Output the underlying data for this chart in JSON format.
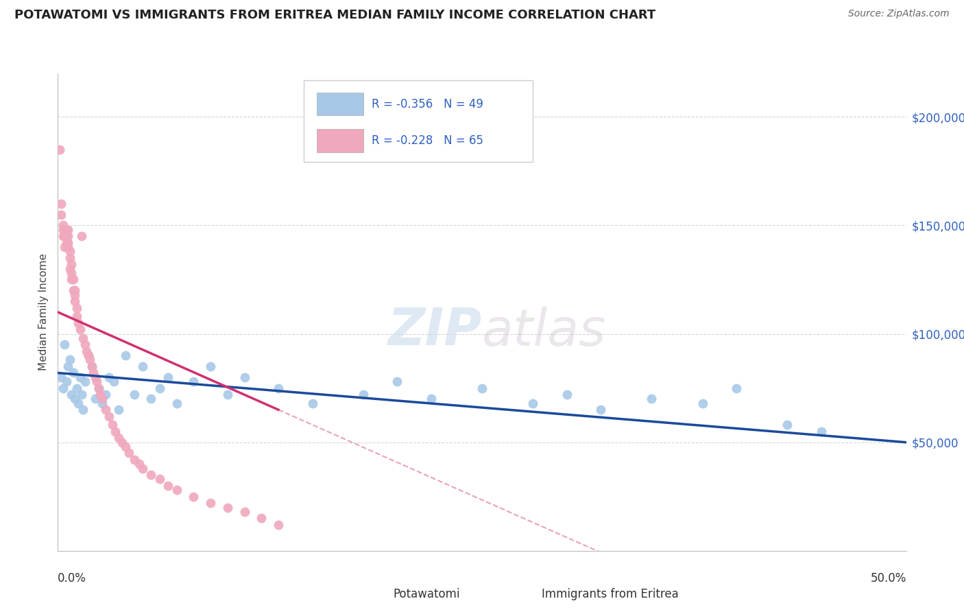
{
  "title": "POTAWATOMI VS IMMIGRANTS FROM ERITREA MEDIAN FAMILY INCOME CORRELATION CHART",
  "source": "Source: ZipAtlas.com",
  "ylabel": "Median Family Income",
  "ytick_labels": [
    "$50,000",
    "$100,000",
    "$150,000",
    "$200,000"
  ],
  "ytick_values": [
    50000,
    100000,
    150000,
    200000
  ],
  "ylim": [
    0,
    220000
  ],
  "xlim": [
    0.0,
    0.5
  ],
  "watermark_zip": "ZIP",
  "watermark_atlas": "atlas",
  "legend_blue_r": "R = -0.356",
  "legend_blue_n": "N = 49",
  "legend_pink_r": "R = -0.228",
  "legend_pink_n": "N = 65",
  "blue_color": "#a8c8e8",
  "pink_color": "#f0a8bc",
  "blue_line_color": "#1a4a9a",
  "pink_line_color": "#d03070",
  "potawatomi_x": [
    0.002,
    0.003,
    0.004,
    0.005,
    0.006,
    0.007,
    0.008,
    0.009,
    0.01,
    0.011,
    0.012,
    0.013,
    0.014,
    0.015,
    0.016,
    0.018,
    0.02,
    0.022,
    0.024,
    0.026,
    0.028,
    0.03,
    0.033,
    0.036,
    0.04,
    0.045,
    0.05,
    0.055,
    0.06,
    0.065,
    0.07,
    0.08,
    0.09,
    0.1,
    0.11,
    0.13,
    0.15,
    0.18,
    0.2,
    0.22,
    0.25,
    0.28,
    0.3,
    0.32,
    0.35,
    0.38,
    0.4,
    0.43,
    0.45
  ],
  "potawatomi_y": [
    80000,
    75000,
    95000,
    78000,
    85000,
    88000,
    72000,
    82000,
    70000,
    75000,
    68000,
    80000,
    72000,
    65000,
    78000,
    90000,
    85000,
    70000,
    75000,
    68000,
    72000,
    80000,
    78000,
    65000,
    90000,
    72000,
    85000,
    70000,
    75000,
    80000,
    68000,
    78000,
    85000,
    72000,
    80000,
    75000,
    68000,
    72000,
    78000,
    70000,
    75000,
    68000,
    72000,
    65000,
    70000,
    68000,
    75000,
    58000,
    55000
  ],
  "eritrea_x": [
    0.001,
    0.002,
    0.002,
    0.003,
    0.003,
    0.003,
    0.004,
    0.004,
    0.004,
    0.005,
    0.005,
    0.005,
    0.006,
    0.006,
    0.006,
    0.006,
    0.007,
    0.007,
    0.007,
    0.008,
    0.008,
    0.008,
    0.009,
    0.009,
    0.01,
    0.01,
    0.01,
    0.011,
    0.011,
    0.012,
    0.013,
    0.014,
    0.015,
    0.016,
    0.017,
    0.018,
    0.019,
    0.02,
    0.021,
    0.022,
    0.023,
    0.024,
    0.025,
    0.026,
    0.028,
    0.03,
    0.032,
    0.034,
    0.036,
    0.038,
    0.04,
    0.042,
    0.045,
    0.048,
    0.05,
    0.055,
    0.06,
    0.065,
    0.07,
    0.08,
    0.09,
    0.1,
    0.11,
    0.12,
    0.13
  ],
  "eritrea_y": [
    185000,
    160000,
    155000,
    150000,
    148000,
    145000,
    148000,
    145000,
    140000,
    148000,
    145000,
    142000,
    148000,
    145000,
    142000,
    140000,
    138000,
    135000,
    130000,
    132000,
    128000,
    125000,
    125000,
    120000,
    120000,
    118000,
    115000,
    112000,
    108000,
    105000,
    102000,
    145000,
    98000,
    95000,
    92000,
    90000,
    88000,
    85000,
    82000,
    80000,
    78000,
    75000,
    72000,
    70000,
    65000,
    62000,
    58000,
    55000,
    52000,
    50000,
    48000,
    45000,
    42000,
    40000,
    38000,
    35000,
    33000,
    30000,
    28000,
    25000,
    22000,
    20000,
    18000,
    15000,
    12000
  ]
}
